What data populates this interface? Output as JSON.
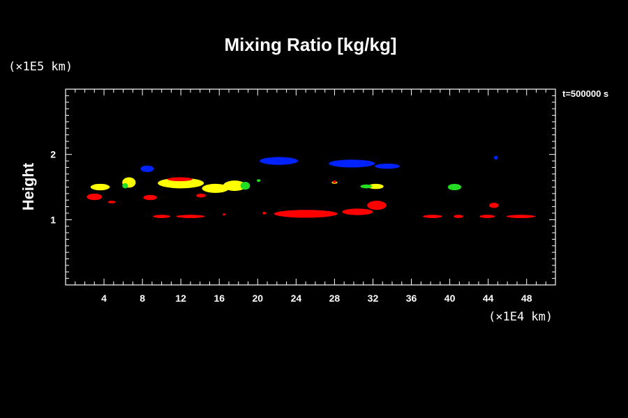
{
  "chart_data": {
    "type": "heatmap",
    "title": "Mixing Ratio [kg/kg]",
    "ylabel": "Height",
    "y_unit_label": "(×1E5 km)",
    "x_unit_label": "(×1E4 km)",
    "time_label": "t=500000 s",
    "xlim": [
      0,
      51
    ],
    "ylim": [
      0,
      3
    ],
    "x_ticks": [
      4,
      8,
      12,
      16,
      20,
      24,
      28,
      32,
      36,
      40,
      44,
      48
    ],
    "y_ticks": [
      1,
      2
    ],
    "grid": false,
    "colors": {
      "background": "#000000",
      "axis": "#ffffff",
      "blue": "#0022ff",
      "yellow": "#ffff00",
      "green": "#22dd22",
      "red": "#ff0000"
    },
    "regions": [
      {
        "color": "blue",
        "x": 8.5,
        "y": 1.78,
        "rx": 0.7,
        "ry": 0.05
      },
      {
        "color": "blue",
        "x": 22.2,
        "y": 1.9,
        "rx": 2.0,
        "ry": 0.06
      },
      {
        "color": "blue",
        "x": 29.8,
        "y": 1.86,
        "rx": 2.4,
        "ry": 0.06
      },
      {
        "color": "blue",
        "x": 33.5,
        "y": 1.82,
        "rx": 1.3,
        "ry": 0.04
      },
      {
        "color": "blue",
        "x": 44.8,
        "y": 1.95,
        "rx": 0.2,
        "ry": 0.03
      },
      {
        "color": "yellow",
        "x": 3.6,
        "y": 1.5,
        "rx": 1.0,
        "ry": 0.05
      },
      {
        "color": "yellow",
        "x": 6.6,
        "y": 1.57,
        "rx": 0.7,
        "ry": 0.08
      },
      {
        "color": "yellow",
        "x": 12.0,
        "y": 1.56,
        "rx": 2.4,
        "ry": 0.08
      },
      {
        "color": "yellow",
        "x": 15.6,
        "y": 1.48,
        "rx": 1.4,
        "ry": 0.07
      },
      {
        "color": "yellow",
        "x": 17.6,
        "y": 1.52,
        "rx": 1.2,
        "ry": 0.08
      },
      {
        "color": "yellow",
        "x": 32.3,
        "y": 1.51,
        "rx": 0.8,
        "ry": 0.04
      },
      {
        "color": "yellow",
        "x": 28.0,
        "y": 1.57,
        "rx": 0.3,
        "ry": 0.02
      },
      {
        "color": "green",
        "x": 18.7,
        "y": 1.52,
        "rx": 0.5,
        "ry": 0.06
      },
      {
        "color": "green",
        "x": 31.3,
        "y": 1.51,
        "rx": 0.6,
        "ry": 0.03
      },
      {
        "color": "green",
        "x": 40.5,
        "y": 1.5,
        "rx": 0.7,
        "ry": 0.05
      },
      {
        "color": "green",
        "x": 6.2,
        "y": 1.52,
        "rx": 0.3,
        "ry": 0.04
      },
      {
        "color": "green",
        "x": 20.1,
        "y": 1.6,
        "rx": 0.2,
        "ry": 0.02
      },
      {
        "color": "red",
        "x": 3.0,
        "y": 1.35,
        "rx": 0.8,
        "ry": 0.05
      },
      {
        "color": "red",
        "x": 4.8,
        "y": 1.27,
        "rx": 0.4,
        "ry": 0.02
      },
      {
        "color": "red",
        "x": 8.8,
        "y": 1.34,
        "rx": 0.7,
        "ry": 0.04
      },
      {
        "color": "red",
        "x": 11.9,
        "y": 1.62,
        "rx": 1.3,
        "ry": 0.03
      },
      {
        "color": "red",
        "x": 14.1,
        "y": 1.37,
        "rx": 0.5,
        "ry": 0.03
      },
      {
        "color": "red",
        "x": 10.0,
        "y": 1.05,
        "rx": 0.9,
        "ry": 0.025
      },
      {
        "color": "red",
        "x": 13.0,
        "y": 1.05,
        "rx": 1.5,
        "ry": 0.025
      },
      {
        "color": "red",
        "x": 25.0,
        "y": 1.09,
        "rx": 3.3,
        "ry": 0.06
      },
      {
        "color": "red",
        "x": 30.4,
        "y": 1.12,
        "rx": 1.6,
        "ry": 0.05
      },
      {
        "color": "red",
        "x": 32.4,
        "y": 1.22,
        "rx": 1.0,
        "ry": 0.07
      },
      {
        "color": "red",
        "x": 38.2,
        "y": 1.05,
        "rx": 1.0,
        "ry": 0.025
      },
      {
        "color": "red",
        "x": 40.9,
        "y": 1.05,
        "rx": 0.5,
        "ry": 0.025
      },
      {
        "color": "red",
        "x": 43.9,
        "y": 1.05,
        "rx": 0.8,
        "ry": 0.025
      },
      {
        "color": "red",
        "x": 44.6,
        "y": 1.22,
        "rx": 0.5,
        "ry": 0.04
      },
      {
        "color": "red",
        "x": 47.4,
        "y": 1.05,
        "rx": 1.5,
        "ry": 0.025
      },
      {
        "color": "red",
        "x": 28.0,
        "y": 1.58,
        "rx": 0.2,
        "ry": 0.02
      },
      {
        "color": "red",
        "x": 16.5,
        "y": 1.08,
        "rx": 0.15,
        "ry": 0.015
      },
      {
        "color": "red",
        "x": 20.7,
        "y": 1.1,
        "rx": 0.2,
        "ry": 0.02
      }
    ]
  }
}
